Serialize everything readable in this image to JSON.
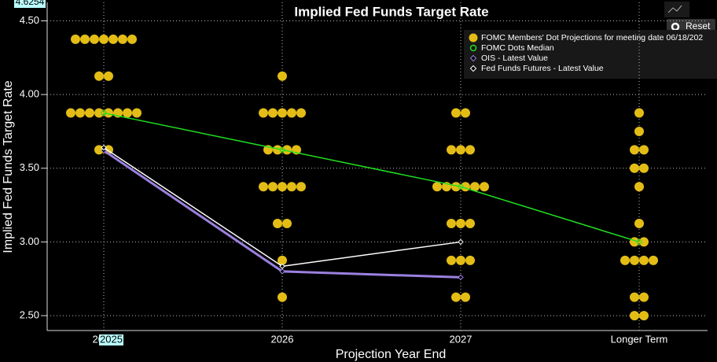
{
  "chart_data": {
    "type": "dot-plot",
    "title": "Implied Fed Funds Target Rate",
    "ylabel": "Implied Fed Funds Target Rate",
    "xlabel": "Projection Year End",
    "categories": [
      "2025",
      "2026",
      "2027",
      "Longer Term"
    ],
    "crosshair_y": 4.6254,
    "crosshair_x": "2025",
    "reset_label": "Reset",
    "ylim": [
      2.399,
      4.6254
    ],
    "yticks": [
      {
        "value": 2.5,
        "label": "2.50"
      },
      {
        "value": 3,
        "label": "3.00"
      },
      {
        "value": 3.5,
        "label": "3.50"
      },
      {
        "value": 4,
        "label": "4.00"
      },
      {
        "value": 4.5,
        "label": "4.50"
      }
    ],
    "grid": true,
    "legend": "top-right",
    "series": [
      {
        "name": "FOMC Members' Dot Projections for meeting date 06/18/202",
        "color": "#e3bd16",
        "kind": "dots",
        "values": [
          [
            4.375,
            4.375,
            4.375,
            4.375,
            4.375,
            4.375,
            4.375,
            4.125,
            4.125,
            3.875,
            3.875,
            3.875,
            3.875,
            3.875,
            3.875,
            3.875,
            3.875,
            3.625,
            3.625
          ],
          [
            4.125,
            3.875,
            3.875,
            3.875,
            3.875,
            3.875,
            3.625,
            3.625,
            3.625,
            3.625,
            3.375,
            3.375,
            3.375,
            3.375,
            3.375,
            3.125,
            3.125,
            2.875,
            2.625
          ],
          [
            3.875,
            3.875,
            3.625,
            3.625,
            3.625,
            3.375,
            3.375,
            3.375,
            3.375,
            3.375,
            3.375,
            3.125,
            3.125,
            3.125,
            2.875,
            2.875,
            2.875,
            2.625,
            2.625
          ],
          [
            3.875,
            3.75,
            3.625,
            3.625,
            3.5,
            3.5,
            3.375,
            3.125,
            3.0,
            3.0,
            2.875,
            2.875,
            2.875,
            2.875,
            2.625,
            2.625,
            2.5,
            2.5
          ]
        ]
      },
      {
        "name": "FOMC Dots Median",
        "color": "#1fe01f",
        "kind": "line",
        "marker": "circle",
        "values": [
          3.875,
          3.625,
          3.375,
          3.0
        ]
      },
      {
        "name": "OIS - Latest Value",
        "color": "#9b80e0",
        "kind": "line",
        "marker": "diamond",
        "width": 3,
        "values": [
          3.62,
          2.8,
          2.76,
          null
        ]
      },
      {
        "name": "Fed Funds Futures - Latest Value",
        "color": "#ffffff",
        "kind": "line",
        "marker": "diamond",
        "width": 1.5,
        "values": [
          3.64,
          2.835,
          3.0,
          null
        ]
      }
    ]
  }
}
